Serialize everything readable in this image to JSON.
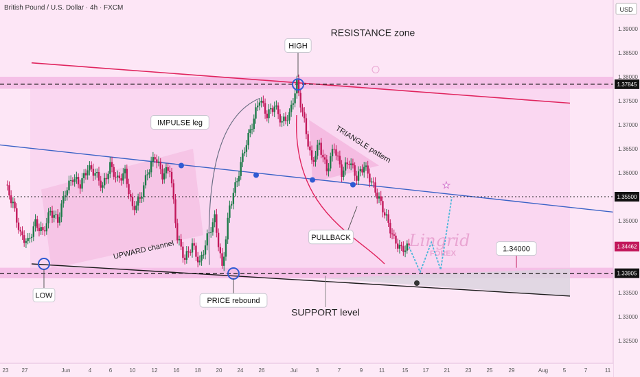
{
  "header": {
    "instrument_title": "British Pound / U.S. Dollar · 4h · FXCM"
  },
  "axis": {
    "currency_badge": "USD"
  },
  "colors": {
    "bg": "#fde6f6",
    "zone": "#f3b7e3",
    "up": "#1c7a48",
    "down": "#c2185b",
    "support": "#1a1a1a",
    "resistance": "#e0245e",
    "channel": "#3a62c6",
    "price_badge": "#c2185b",
    "level_badge": "#111111"
  },
  "annotations": {
    "resistance_zone": "RESISTANCE zone",
    "high": "HIGH",
    "impulse_leg": "IMPULSE leg",
    "triangle_pattern": "TRIANGLE pattern",
    "upward_channel": "UPWARD channel",
    "pullback": "PULLBACK",
    "low": "LOW",
    "price_rebound": "PRICE rebound",
    "support_level": "SUPPORT level",
    "target_level": "1.34000"
  },
  "watermark": {
    "brand": "Lingrid",
    "sub": "FOREX"
  },
  "chart_data": {
    "type": "candlestick",
    "title": "British Pound / U.S. Dollar · 4h · FXCM",
    "y_ticks": [
      "1.39000",
      "1.38500",
      "1.38000",
      "1.37500",
      "1.37000",
      "1.36500",
      "1.36000",
      "1.35500",
      "1.35000",
      "1.34500",
      "1.34000",
      "1.33500",
      "1.33000",
      "1.32500"
    ],
    "ylim": [
      1.3225,
      1.3965
    ],
    "x_ticks": [
      "23",
      "27",
      "Jun",
      "4",
      "6",
      "10",
      "12",
      "16",
      "18",
      "20",
      "24",
      "26",
      "Jul",
      "3",
      "7",
      "9",
      "11",
      "15",
      "17",
      "21",
      "23",
      "25",
      "29",
      "Aug",
      "5",
      "7",
      "11"
    ],
    "levels": [
      {
        "label": "1.37845",
        "value": 1.37845,
        "style": "dashed"
      },
      {
        "label": "1.35500",
        "value": 1.355,
        "style": "dotted"
      },
      {
        "label": "1.34462",
        "value": 1.34462,
        "style": "last-price"
      },
      {
        "label": "1.33905",
        "value": 1.33905,
        "style": "dashed"
      }
    ],
    "zones": [
      {
        "name": "resistance",
        "from": 1.3775,
        "to": 1.38
      },
      {
        "name": "support",
        "from": 1.338,
        "to": 1.3402
      }
    ],
    "price_path": [
      {
        "t": 0,
        "p": 1.3575
      },
      {
        "t": 4,
        "p": 1.3535
      },
      {
        "t": 8,
        "p": 1.347
      },
      {
        "t": 12,
        "p": 1.3455
      },
      {
        "t": 16,
        "p": 1.3495
      },
      {
        "t": 20,
        "p": 1.3475
      },
      {
        "t": 24,
        "p": 1.352
      },
      {
        "t": 28,
        "p": 1.35
      },
      {
        "t": 32,
        "p": 1.356
      },
      {
        "t": 36,
        "p": 1.359
      },
      {
        "t": 40,
        "p": 1.3575
      },
      {
        "t": 44,
        "p": 1.361
      },
      {
        "t": 48,
        "p": 1.36
      },
      {
        "t": 52,
        "p": 1.357
      },
      {
        "t": 56,
        "p": 1.3615
      },
      {
        "t": 60,
        "p": 1.3585
      },
      {
        "t": 64,
        "p": 1.36
      },
      {
        "t": 68,
        "p": 1.3525
      },
      {
        "t": 72,
        "p": 1.3545
      },
      {
        "t": 76,
        "p": 1.36
      },
      {
        "t": 80,
        "p": 1.3635
      },
      {
        "t": 84,
        "p": 1.3595
      },
      {
        "t": 88,
        "p": 1.361
      },
      {
        "t": 92,
        "p": 1.3465
      },
      {
        "t": 96,
        "p": 1.342
      },
      {
        "t": 100,
        "p": 1.345
      },
      {
        "t": 104,
        "p": 1.341
      },
      {
        "t": 108,
        "p": 1.3465
      },
      {
        "t": 112,
        "p": 1.3505
      },
      {
        "t": 116,
        "p": 1.34
      },
      {
        "t": 120,
        "p": 1.353
      },
      {
        "t": 124,
        "p": 1.3585
      },
      {
        "t": 128,
        "p": 1.365
      },
      {
        "t": 132,
        "p": 1.37
      },
      {
        "t": 136,
        "p": 1.3755
      },
      {
        "t": 140,
        "p": 1.372
      },
      {
        "t": 144,
        "p": 1.374
      },
      {
        "t": 148,
        "p": 1.3705
      },
      {
        "t": 152,
        "p": 1.372
      },
      {
        "t": 156,
        "p": 1.3785
      },
      {
        "t": 160,
        "p": 1.3705
      },
      {
        "t": 164,
        "p": 1.362
      },
      {
        "t": 168,
        "p": 1.366
      },
      {
        "t": 172,
        "p": 1.3605
      },
      {
        "t": 176,
        "p": 1.3655
      },
      {
        "t": 180,
        "p": 1.36
      },
      {
        "t": 184,
        "p": 1.3625
      },
      {
        "t": 188,
        "p": 1.359
      },
      {
        "t": 192,
        "p": 1.3615
      },
      {
        "t": 196,
        "p": 1.358
      },
      {
        "t": 200,
        "p": 1.3545
      },
      {
        "t": 204,
        "p": 1.3505
      },
      {
        "t": 208,
        "p": 1.346
      },
      {
        "t": 212,
        "p": 1.344
      },
      {
        "t": 216,
        "p": 1.3446
      }
    ],
    "projection": [
      {
        "t": 216,
        "p": 1.3446
      },
      {
        "t": 222,
        "p": 1.3393
      },
      {
        "t": 228,
        "p": 1.3455
      },
      {
        "t": 233,
        "p": 1.3398
      },
      {
        "t": 239,
        "p": 1.355
      }
    ]
  }
}
